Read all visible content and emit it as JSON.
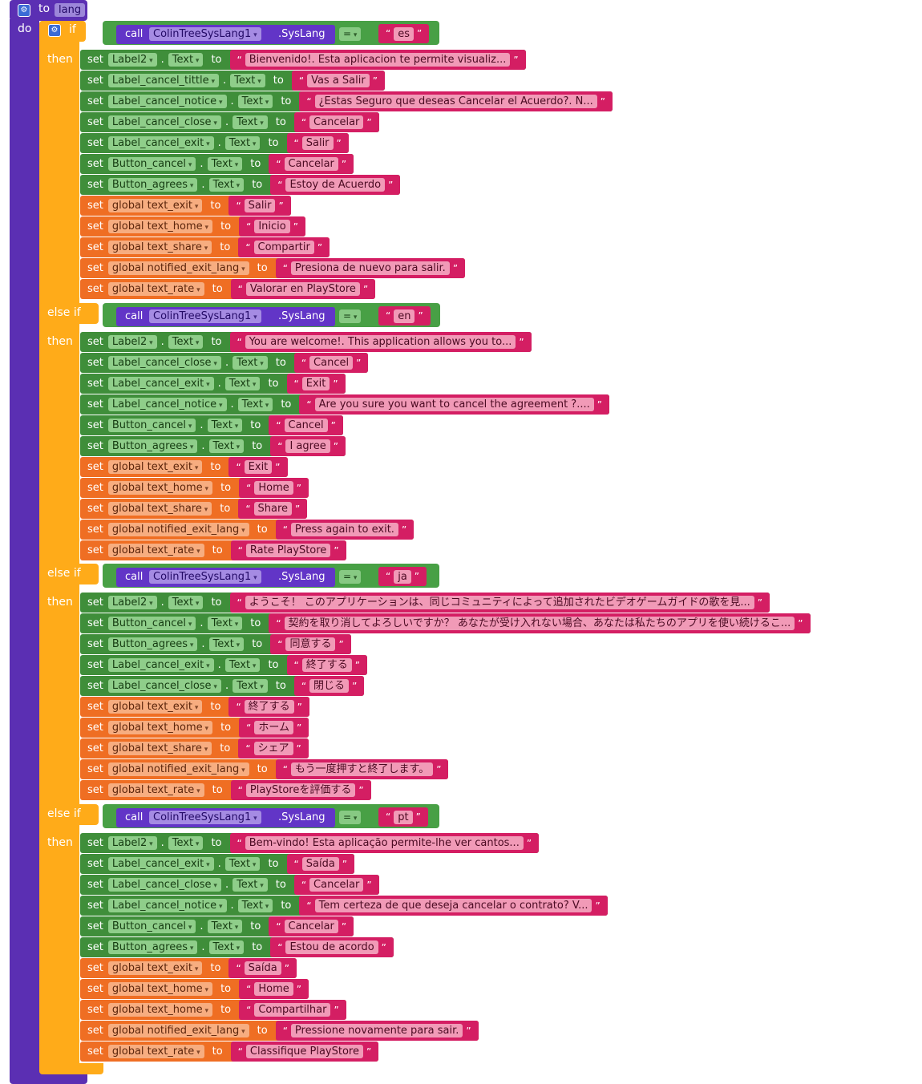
{
  "procedure": {
    "to_label": "to",
    "name": "lang",
    "do_label": "do"
  },
  "keywords": {
    "if": "if",
    "else_if": "else if",
    "then": "then",
    "set": "set",
    "to": "to",
    "dot": ".",
    "call": "call"
  },
  "condition": {
    "component": "ColinTreeSysLang1",
    "method": ".SysLang",
    "operator": "="
  },
  "branches": [
    {
      "lang": "es",
      "sets": [
        {
          "component": "Label2",
          "prop": "Text",
          "value": "Bienvenido!. Esta aplicacion te permite visualiz..."
        },
        {
          "component": "Label_cancel_tittle",
          "prop": "Text",
          "value": "Vas a Salir"
        },
        {
          "component": "Label_cancel_notice",
          "prop": "Text",
          "value": "¿Estas Seguro que deseas Cancelar el Acuerdo?. N..."
        },
        {
          "component": "Label_cancel_close",
          "prop": "Text",
          "value": "Cancelar"
        },
        {
          "component": "Label_cancel_exit",
          "prop": "Text",
          "value": "Salir"
        },
        {
          "component": "Button_cancel",
          "prop": "Text",
          "value": "Cancelar"
        },
        {
          "component": "Button_agrees",
          "prop": "Text",
          "value": "Estoy de Acuerdo"
        },
        {
          "global": "global text_exit",
          "value": "Salir"
        },
        {
          "global": "global text_home",
          "value": "Inicio"
        },
        {
          "global": "global text_share",
          "value": "Compartir"
        },
        {
          "global": "global notified_exit_lang",
          "value": "Presiona de nuevo para salir."
        },
        {
          "global": "global text_rate",
          "value": "Valorar en PlayStore"
        }
      ]
    },
    {
      "lang": "en",
      "sets": [
        {
          "component": "Label2",
          "prop": "Text",
          "value": "You are welcome!. This application allows you to..."
        },
        {
          "component": "Label_cancel_close",
          "prop": "Text",
          "value": "Cancel"
        },
        {
          "component": "Label_cancel_exit",
          "prop": "Text",
          "value": "Exit"
        },
        {
          "component": "Label_cancel_notice",
          "prop": "Text",
          "value": "Are you sure you want to cancel the agreement ?...."
        },
        {
          "component": "Button_cancel",
          "prop": "Text",
          "value": "Cancel"
        },
        {
          "component": "Button_agrees",
          "prop": "Text",
          "value": "I agree"
        },
        {
          "global": "global text_exit",
          "value": "Exit"
        },
        {
          "global": "global text_home",
          "value": "Home"
        },
        {
          "global": "global text_share",
          "value": "Share"
        },
        {
          "global": "global notified_exit_lang",
          "value": "Press again to exit."
        },
        {
          "global": "global text_rate",
          "value": "Rate PlayStore"
        }
      ]
    },
    {
      "lang": "ja",
      "sets": [
        {
          "component": "Label2",
          "prop": "Text",
          "value": "ようこそ！ このアプリケーションは、同じコミュニティによって追加されたビデオゲームガイドの歌を見..."
        },
        {
          "component": "Button_cancel",
          "prop": "Text",
          "value": "契約を取り消してよろしいですか？ あなたが受け入れない場合、あなたは私たちのアプリを使い続けるこ..."
        },
        {
          "component": "Button_agrees",
          "prop": "Text",
          "value": "同意する"
        },
        {
          "component": "Label_cancel_exit",
          "prop": "Text",
          "value": "終了する"
        },
        {
          "component": "Label_cancel_close",
          "prop": "Text",
          "value": "閉じる"
        },
        {
          "global": "global text_exit",
          "value": "終了する"
        },
        {
          "global": "global text_home",
          "value": "ホーム"
        },
        {
          "global": "global text_share",
          "value": "シェア"
        },
        {
          "global": "global notified_exit_lang",
          "value": "もう一度押すと終了します。"
        },
        {
          "global": "global text_rate",
          "value": "PlayStoreを評価する"
        }
      ]
    },
    {
      "lang": "pt",
      "sets": [
        {
          "component": "Label2",
          "prop": "Text",
          "value": "Bem-vindo! Esta aplicação permite-lhe ver cantos..."
        },
        {
          "component": "Label_cancel_exit",
          "prop": "Text",
          "value": "Saída"
        },
        {
          "component": "Label_cancel_close",
          "prop": "Text",
          "value": "Cancelar"
        },
        {
          "component": "Label_cancel_notice",
          "prop": "Text",
          "value": "Tem certeza de que deseja cancelar o contrato? V..."
        },
        {
          "component": "Button_cancel",
          "prop": "Text",
          "value": "Cancelar"
        },
        {
          "component": "Button_agrees",
          "prop": "Text",
          "value": "Estou de acordo"
        },
        {
          "global": "global text_exit",
          "value": "Saída"
        },
        {
          "global": "global text_home",
          "value": "Home"
        },
        {
          "global": "global text_home",
          "value": "Compartilhar"
        },
        {
          "global": "global notified_exit_lang",
          "value": "Pressione novamente para sair."
        },
        {
          "global": "global text_rate",
          "value": "Classifique PlayStore"
        }
      ]
    }
  ],
  "colors": {
    "procedure": "#5b2fb3",
    "control": "#ffab19",
    "logic": "#48a045",
    "component_set": "#3f8e3a",
    "global_set": "#ef6e23",
    "text": "#d41e63",
    "call": "#6235c7"
  }
}
